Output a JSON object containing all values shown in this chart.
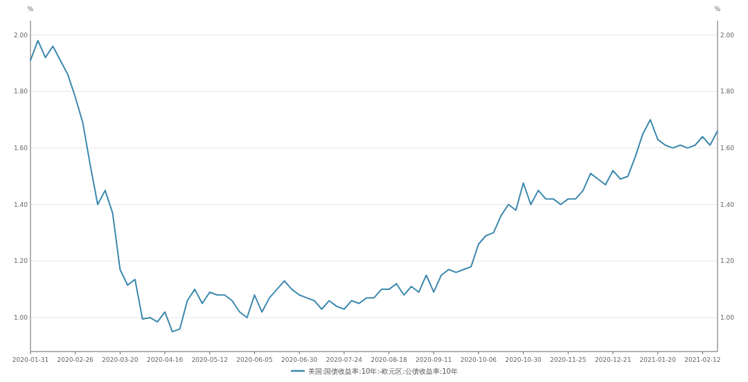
{
  "chart_data": {
    "type": "line",
    "categories": [
      "2020-01-31",
      null,
      null,
      null,
      null,
      null,
      "2020-02-26",
      null,
      null,
      null,
      null,
      null,
      "2020-03-20",
      null,
      null,
      null,
      null,
      null,
      "2020-04-16",
      null,
      null,
      null,
      null,
      null,
      "2020-05-12",
      null,
      null,
      null,
      null,
      null,
      "2020-06-05",
      null,
      null,
      null,
      null,
      null,
      "2020-06-30",
      null,
      null,
      null,
      null,
      null,
      "2020-07-24",
      null,
      null,
      null,
      null,
      null,
      "2020-08-18",
      null,
      null,
      null,
      null,
      null,
      "2020-09-11",
      null,
      null,
      null,
      null,
      null,
      "2020-10-06",
      null,
      null,
      null,
      null,
      null,
      "2020-10-30",
      null,
      null,
      null,
      null,
      null,
      "2020-11-25",
      null,
      null,
      null,
      null,
      null,
      "2020-12-21",
      null,
      null,
      null,
      null,
      null,
      "2021-01-20",
      null,
      null,
      null,
      null,
      null,
      "2021-02-12",
      null,
      null
    ],
    "series": [
      {
        "name": "美国:国债收益率:10年:-欧元区:公债收益率:10年",
        "color": "#3a87ad",
        "values": [
          1.91,
          1.98,
          1.92,
          1.96,
          1.91,
          1.86,
          1.78,
          1.69,
          1.54,
          1.4,
          1.45,
          1.37,
          1.17,
          1.115,
          1.135,
          0.995,
          1.0,
          0.985,
          1.02,
          0.95,
          0.96,
          1.06,
          1.1,
          1.05,
          1.09,
          1.08,
          1.08,
          1.06,
          1.02,
          1.0,
          1.08,
          1.02,
          1.07,
          1.1,
          1.13,
          1.1,
          1.08,
          1.07,
          1.06,
          1.03,
          1.06,
          1.04,
          1.03,
          1.06,
          1.05,
          1.07,
          1.07,
          1.1,
          1.1,
          1.12,
          1.08,
          1.11,
          1.09,
          1.15,
          1.09,
          1.15,
          1.17,
          1.16,
          1.17,
          1.18,
          1.26,
          1.29,
          1.3,
          1.36,
          1.4,
          1.38,
          1.476,
          1.4,
          1.45,
          1.42,
          1.42,
          1.4,
          1.42,
          1.42,
          1.45,
          1.51,
          1.49,
          1.47,
          1.52,
          1.49,
          1.5,
          1.57,
          1.65,
          1.7,
          1.63,
          1.61,
          1.6,
          1.61,
          1.6,
          1.61,
          1.64,
          1.61,
          1.66
        ]
      }
    ],
    "ylabel": "%",
    "y2label": "%",
    "ylim": [
      0.88,
      2.05
    ],
    "yticks": [
      {
        "value": 1,
        "label": "1.00"
      },
      {
        "value": 1.2,
        "label": "1.20"
      },
      {
        "value": 1.4,
        "label": "1.40"
      },
      {
        "value": 1.6,
        "label": "1.60"
      },
      {
        "value": 1.8,
        "label": "1.80"
      },
      {
        "value": 2,
        "label": "2.00"
      }
    ],
    "y2lim": [
      0.88,
      2.05
    ],
    "y2ticks": [
      {
        "value": 1,
        "label": "1.00"
      },
      {
        "value": 1.2,
        "label": "1.20"
      },
      {
        "value": 1.4,
        "label": "1.40"
      },
      {
        "value": 1.6,
        "label": "1.60"
      },
      {
        "value": 1.8,
        "label": "1.80"
      },
      {
        "value": 2,
        "label": "2.00"
      }
    ],
    "grid": "y",
    "legend": "bottom",
    "line_style": "solid",
    "marker": "none"
  }
}
